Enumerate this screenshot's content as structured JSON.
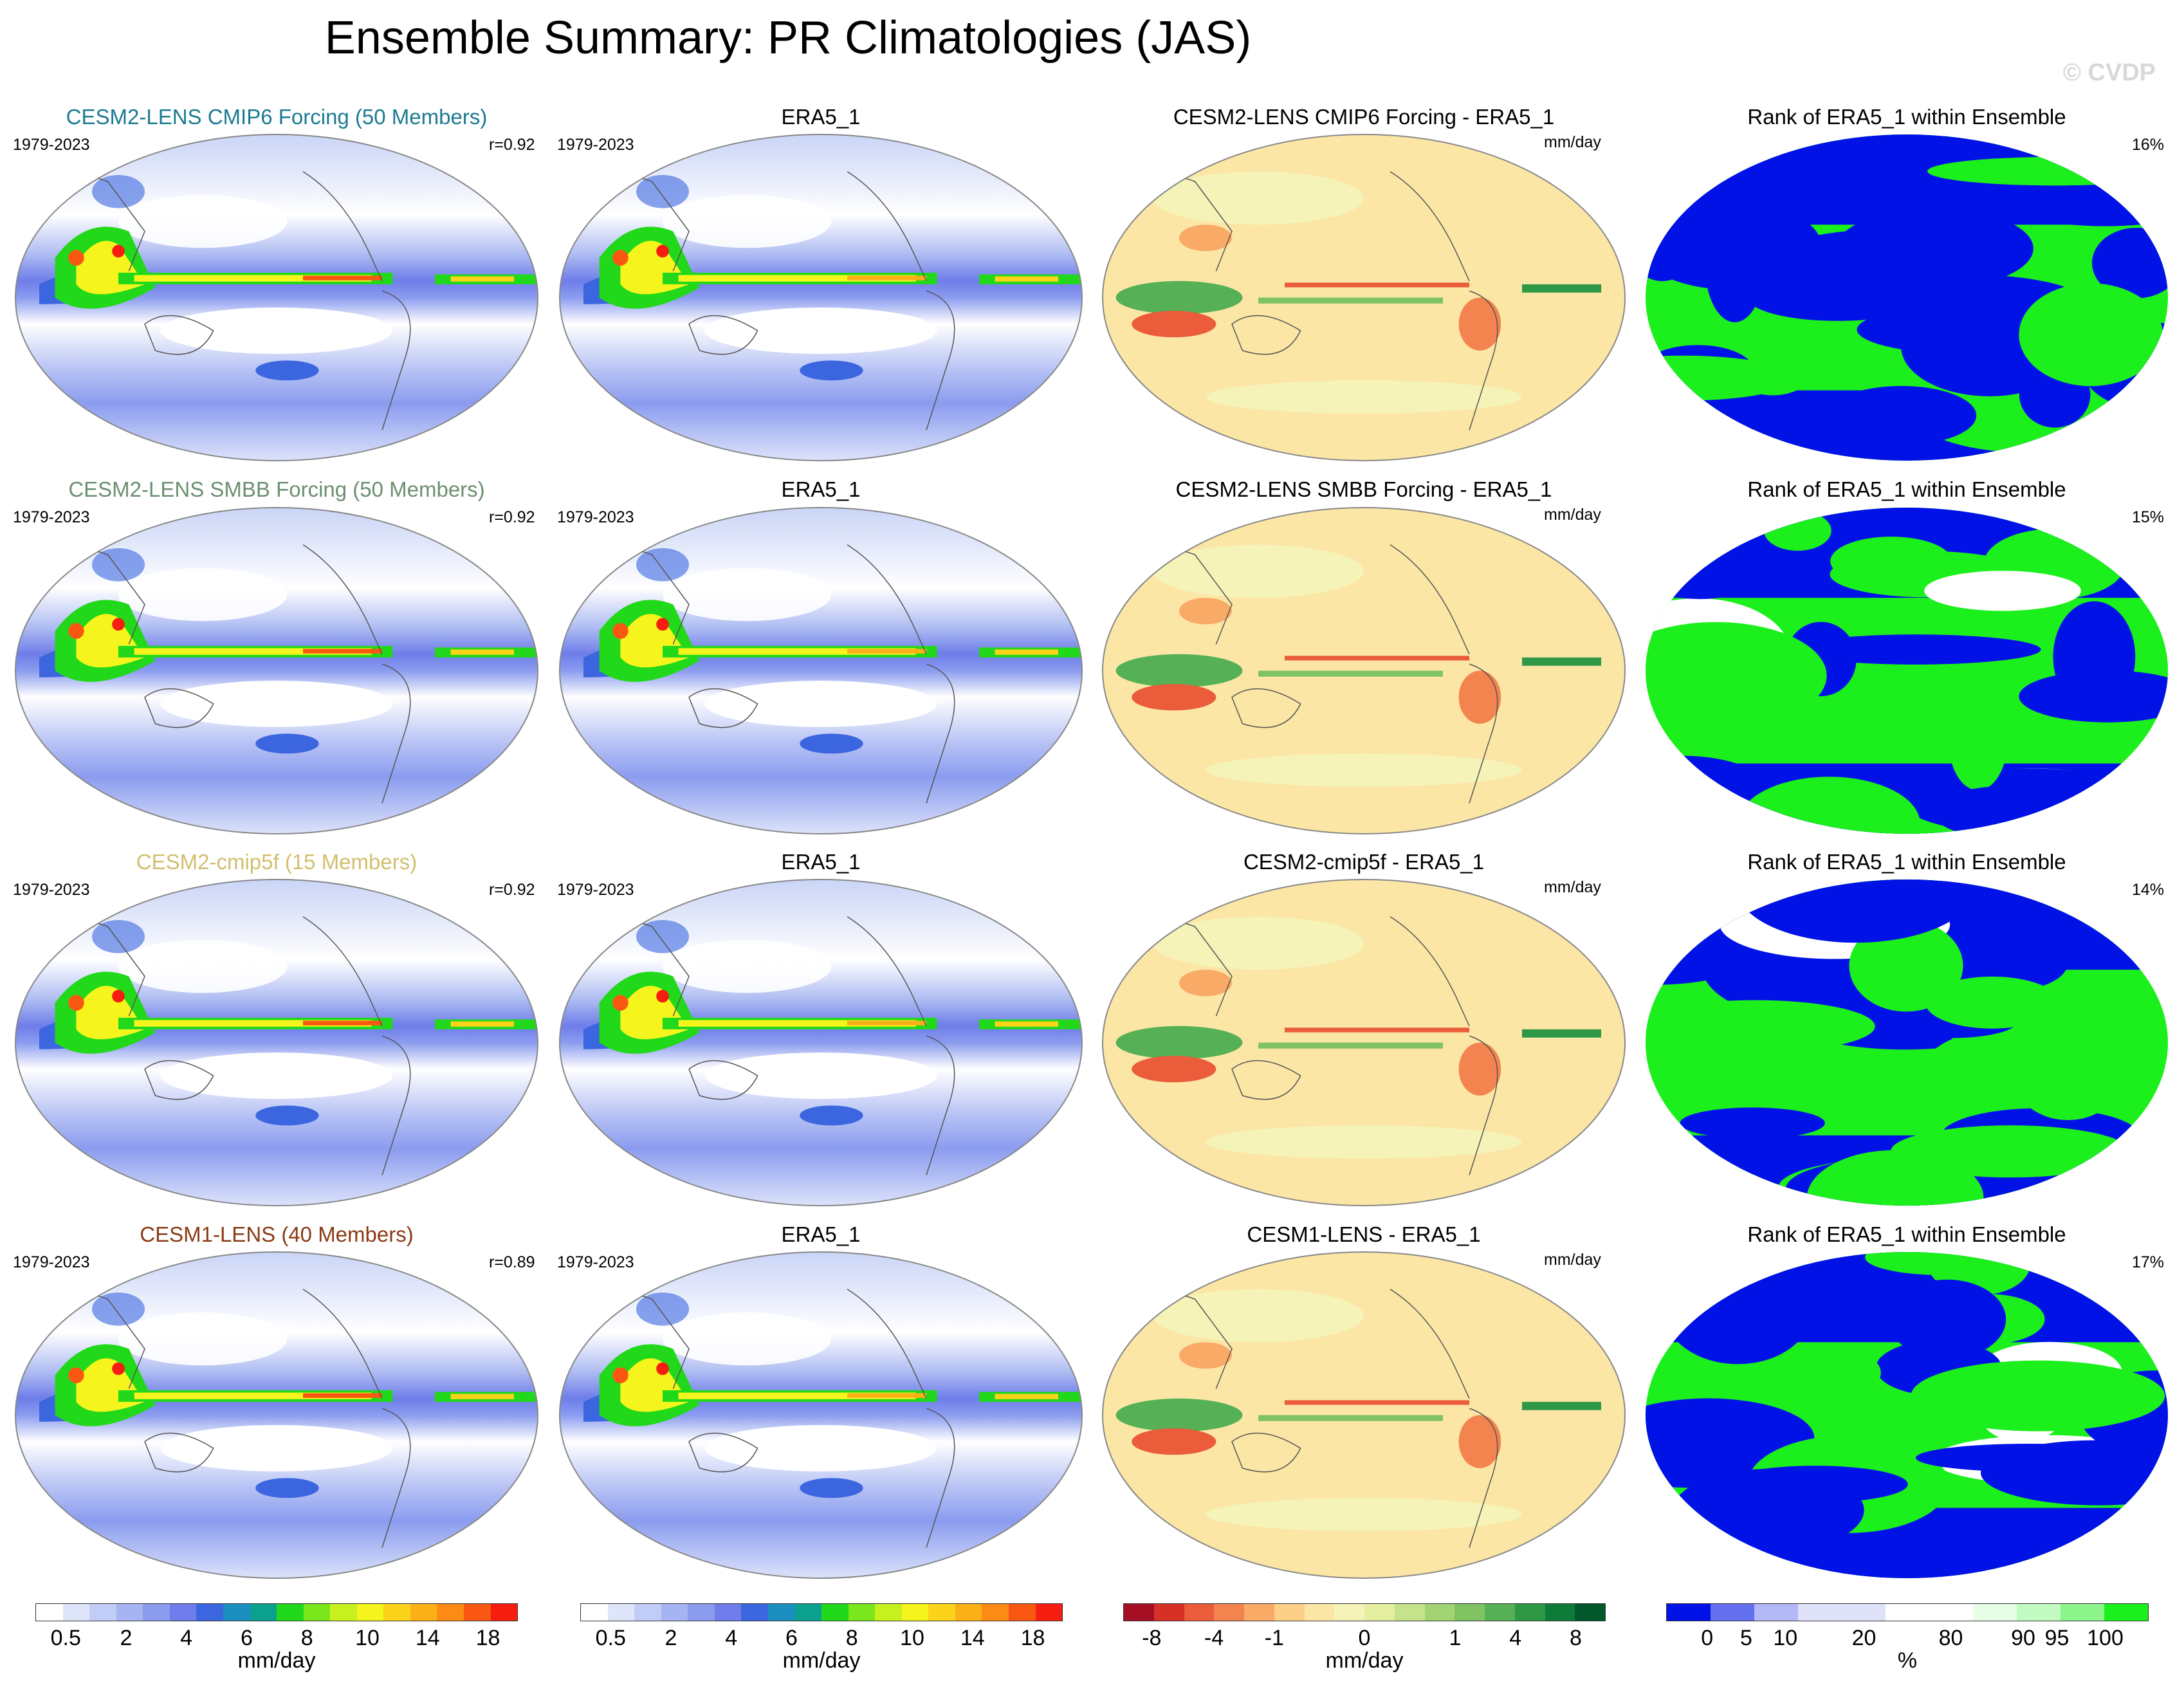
{
  "title": "Ensemble Summary: PR Climatologies (JAS)",
  "copyright": "© CVDP",
  "rows": [
    {
      "model": {
        "title": "CESM2-LENS CMIP6 Forcing (50 Members)",
        "color": "#1c7a92",
        "years": "1979-2023",
        "r": "r=0.92"
      },
      "obs": {
        "title": "ERA5_1",
        "years": "1979-2023"
      },
      "diff": {
        "title": "CESM2-LENS CMIP6 Forcing - ERA5_1",
        "units": "mm/day"
      },
      "rank": {
        "title": "Rank of ERA5_1 within Ensemble",
        "pct": "16%"
      }
    },
    {
      "model": {
        "title": "CESM2-LENS SMBB Forcing (50 Members)",
        "color": "#6b8f70",
        "years": "1979-2023",
        "r": "r=0.92"
      },
      "obs": {
        "title": "ERA5_1",
        "years": "1979-2023"
      },
      "diff": {
        "title": "CESM2-LENS SMBB Forcing - ERA5_1",
        "units": "mm/day"
      },
      "rank": {
        "title": "Rank of ERA5_1 within Ensemble",
        "pct": "15%"
      }
    },
    {
      "model": {
        "title": "CESM2-cmip5f (15 Members)",
        "color": "#d1bf6e",
        "years": "1979-2023",
        "r": "r=0.92"
      },
      "obs": {
        "title": "ERA5_1",
        "years": "1979-2023"
      },
      "diff": {
        "title": "CESM2-cmip5f - ERA5_1",
        "units": "mm/day"
      },
      "rank": {
        "title": "Rank of ERA5_1 within Ensemble",
        "pct": "14%"
      }
    },
    {
      "model": {
        "title": "CESM1-LENS (40 Members)",
        "color": "#8a3a14",
        "years": "1979-2023",
        "r": "r=0.89"
      },
      "obs": {
        "title": "ERA5_1",
        "years": "1979-2023"
      },
      "diff": {
        "title": "CESM1-LENS - ERA5_1",
        "units": "mm/day"
      },
      "rank": {
        "title": "Rank of ERA5_1 within Ensemble",
        "pct": "17%"
      }
    }
  ],
  "colorbars": {
    "precip": {
      "colors": [
        "#ffffff",
        "#dfe6fb",
        "#c2cdf7",
        "#a6b4f3",
        "#8b9cef",
        "#6e7de9",
        "#3b66e0",
        "#1a8fbf",
        "#0ca08e",
        "#22d81a",
        "#7ae61c",
        "#c8f01f",
        "#f5f51d",
        "#fcd31a",
        "#fcb018",
        "#fb8b15",
        "#fa5812",
        "#f51e10"
      ],
      "ticks": [
        "0.5",
        "2",
        "4",
        "6",
        "8",
        "10",
        "14",
        "18"
      ],
      "label": "mm/day"
    },
    "diff": {
      "colors": [
        "#a50f24",
        "#d73027",
        "#ea5c3a",
        "#f4844f",
        "#f9aa67",
        "#fdd08a",
        "#fbe6a6",
        "#f5f3b8",
        "#e4ef9f",
        "#c5e38a",
        "#a3d473",
        "#7fc363",
        "#56b055",
        "#2e9847",
        "#0e7b39",
        "#00582b"
      ],
      "ticks": [
        "-8",
        "-4",
        "-1",
        "0",
        "1",
        "4",
        "8"
      ],
      "label": "mm/day"
    },
    "rank": {
      "colors": [
        "#0012e6",
        "#6570ef",
        "#b3b8f6",
        "#e0e2fa",
        "#e0e2fa",
        "#ffffff",
        "#ffffff",
        "#e6ffe6",
        "#c2fcc2",
        "#8cf58c",
        "#1cf01c"
      ],
      "ticks": [
        "0",
        "5",
        "10",
        "20",
        "80",
        "90",
        "95",
        "100"
      ],
      "label": "%"
    }
  }
}
